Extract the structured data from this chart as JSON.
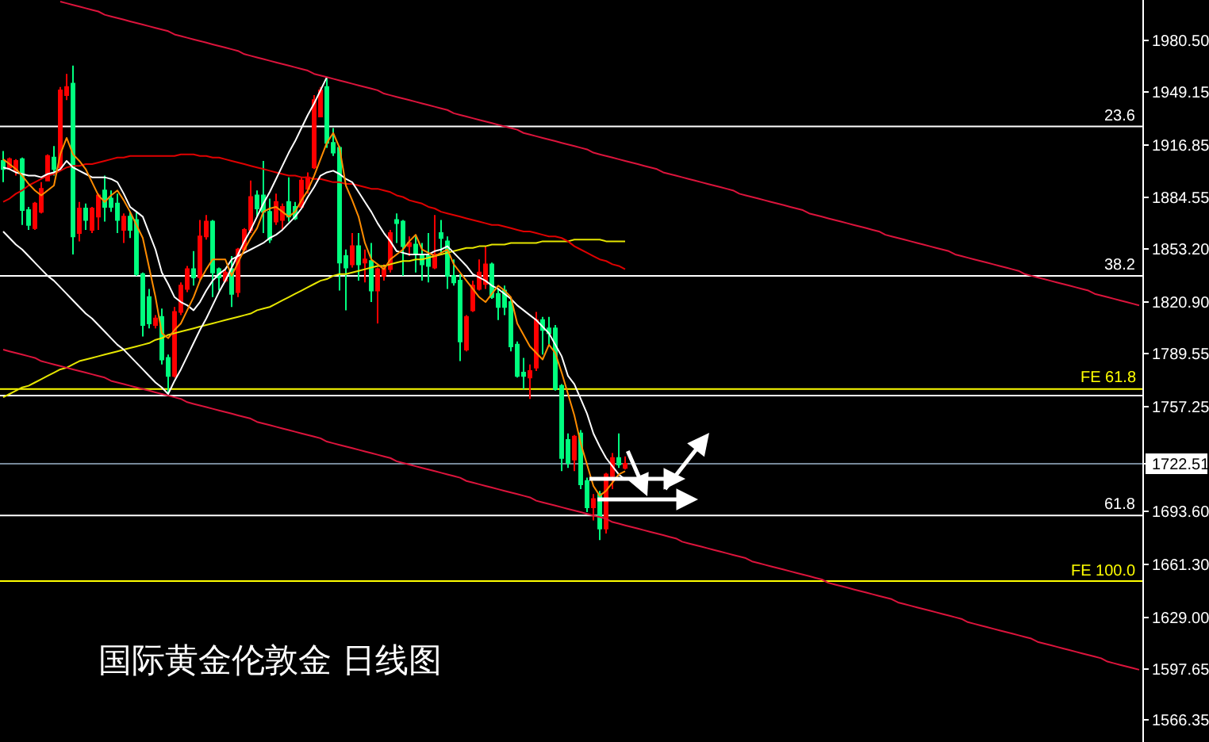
{
  "chart_data": {
    "type": "candlestick",
    "title": "国际黄金伦敦金 日线图",
    "categories": [
      null,
      null,
      null,
      null,
      null,
      null,
      null,
      null,
      null,
      null,
      null,
      null,
      null,
      null,
      null,
      null,
      null,
      null,
      null,
      null,
      null,
      null,
      null,
      null,
      null,
      null,
      null,
      null,
      null,
      null,
      null,
      null,
      null,
      null,
      null,
      null,
      null,
      null,
      null,
      null,
      null,
      null,
      null,
      null,
      null,
      null,
      null,
      null,
      null,
      null,
      null,
      null,
      null,
      null,
      null,
      null,
      null,
      null,
      null,
      null,
      null,
      null,
      null,
      null,
      null,
      null,
      null,
      null,
      null,
      null,
      null,
      null,
      null,
      null,
      null,
      null,
      null,
      null,
      null,
      null,
      null,
      null,
      null,
      null,
      null,
      null,
      null,
      null,
      null,
      null,
      null,
      null,
      null,
      null,
      null,
      null,
      null,
      null,
      null,
      null,
      null,
      null,
      null,
      null,
      null,
      null,
      null,
      null,
      null,
      null,
      null,
      null,
      null,
      null,
      null,
      null,
      null,
      null,
      null,
      null,
      null,
      null,
      null,
      null,
      null,
      null,
      null,
      null,
      null,
      null,
      null,
      null,
      null,
      null,
      null,
      null,
      null,
      null,
      null,
      null,
      null,
      null,
      null,
      null,
      null,
      null,
      null,
      null,
      null,
      null,
      null,
      null,
      null,
      null,
      null,
      null,
      null,
      null,
      null,
      null,
      null,
      null,
      null,
      null,
      null,
      null,
      null,
      null,
      null,
      null,
      null,
      null,
      null,
      null,
      null,
      null,
      null,
      null,
      null,
      null
    ],
    "ohlc": [
      [
        1907,
        1913,
        1894,
        1902
      ],
      [
        1903,
        1909,
        1902,
        1908
      ],
      [
        1901,
        1908,
        1898,
        1907
      ],
      [
        1908,
        1909,
        1868,
        1877
      ],
      [
        1877,
        1879,
        1865,
        1868
      ],
      [
        1866,
        1882,
        1865,
        1881
      ],
      [
        1876,
        1894,
        1875,
        1890
      ],
      [
        1895,
        1911,
        1895,
        1910
      ],
      [
        1909,
        1916,
        1898,
        1902
      ],
      [
        1903,
        1952,
        1902,
        1950
      ],
      [
        1947,
        1960,
        1944,
        1952
      ],
      [
        1954,
        1965,
        1850,
        1861
      ],
      [
        1863,
        1882,
        1858,
        1878
      ],
      [
        1878,
        1881,
        1865,
        1871
      ],
      [
        1865,
        1879,
        1863,
        1878
      ],
      [
        1873,
        1887,
        1865,
        1886
      ],
      [
        1889,
        1898,
        1870,
        1879
      ],
      [
        1884,
        1889,
        1876,
        1879
      ],
      [
        1881,
        1887,
        1863,
        1871
      ],
      [
        1865,
        1875,
        1857,
        1873
      ],
      [
        1873,
        1876,
        1860,
        1865
      ],
      [
        1871,
        1876,
        1837,
        1838
      ],
      [
        1838,
        1839,
        1800,
        1807
      ],
      [
        1824,
        1829,
        1805,
        1808
      ],
      [
        1807,
        1813,
        1805,
        1811
      ],
      [
        1812,
        1817,
        1783,
        1786
      ],
      [
        1787,
        1789,
        1765,
        1776
      ],
      [
        1776,
        1818,
        1775,
        1815
      ],
      [
        1815,
        1833,
        1813,
        1831
      ],
      [
        1829,
        1843,
        1827,
        1841
      ],
      [
        1841,
        1852,
        1831,
        1836
      ],
      [
        1836,
        1871,
        1834,
        1861
      ],
      [
        1861,
        1874,
        1859,
        1870
      ],
      [
        1870,
        1871,
        1824,
        1839
      ],
      [
        1841,
        1842,
        1828,
        1836
      ],
      [
        1834,
        1841,
        1833,
        1839
      ],
      [
        1841,
        1849,
        1818,
        1826
      ],
      [
        1827,
        1854,
        1824,
        1853
      ],
      [
        1853,
        1866,
        1852,
        1865
      ],
      [
        1865,
        1895,
        1863,
        1885
      ],
      [
        1886,
        1889,
        1873,
        1878
      ],
      [
        1886,
        1907,
        1863,
        1876
      ],
      [
        1876,
        1884,
        1857,
        1859
      ],
      [
        1870,
        1887,
        1868,
        1882
      ],
      [
        1871,
        1881,
        1865,
        1879
      ],
      [
        1882,
        1897,
        1870,
        1873
      ],
      [
        1879,
        1882,
        1871,
        1872
      ],
      [
        1879,
        1897,
        1878,
        1895
      ],
      [
        1890,
        1900,
        1887,
        1897
      ],
      [
        1903,
        1947,
        1902,
        1944
      ],
      [
        1934,
        1952,
        1934,
        1950
      ],
      [
        1952,
        1958,
        1915,
        1918
      ],
      [
        1918,
        1927,
        1910,
        1912
      ],
      [
        1915,
        1916,
        1828,
        1845
      ],
      [
        1849,
        1853,
        1816,
        1842
      ],
      [
        1844,
        1863,
        1842,
        1855
      ],
      [
        1855,
        1863,
        1834,
        1844
      ],
      [
        1845,
        1853,
        1833,
        1847
      ],
      [
        1846,
        1857,
        1821,
        1828
      ],
      [
        1828,
        1842,
        1808,
        1841
      ],
      [
        1837,
        1844,
        1834,
        1841
      ],
      [
        1841,
        1865,
        1839,
        1863
      ],
      [
        1871,
        1875,
        1857,
        1869
      ],
      [
        1870,
        1871,
        1837,
        1855
      ],
      [
        1855,
        1861,
        1849,
        1857
      ],
      [
        1856,
        1861,
        1839,
        1850
      ],
      [
        1850,
        1857,
        1834,
        1844
      ],
      [
        1849,
        1863,
        1833,
        1843
      ],
      [
        1842,
        1874,
        1841,
        1850
      ],
      [
        1863,
        1871,
        1850,
        1860
      ],
      [
        1858,
        1861,
        1829,
        1837
      ],
      [
        1837,
        1847,
        1831,
        1833
      ],
      [
        1834,
        1838,
        1785,
        1797
      ],
      [
        1792,
        1813,
        1791,
        1812
      ],
      [
        1816,
        1834,
        1815,
        1831
      ],
      [
        1829,
        1847,
        1828,
        1839
      ],
      [
        1832,
        1855,
        1829,
        1844
      ],
      [
        1844,
        1845,
        1823,
        1824
      ],
      [
        1826,
        1829,
        1810,
        1818
      ],
      [
        1828,
        1831,
        1813,
        1818
      ],
      [
        1821,
        1823,
        1791,
        1794
      ],
      [
        1795,
        1797,
        1775,
        1776
      ],
      [
        1778,
        1787,
        1768,
        1776
      ],
      [
        1775,
        1783,
        1762,
        1779
      ],
      [
        1781,
        1815,
        1779,
        1810
      ],
      [
        1810,
        1812,
        1789,
        1804
      ],
      [
        1805,
        1812,
        1795,
        1802
      ],
      [
        1805,
        1807,
        1767,
        1768
      ],
      [
        1770,
        1771,
        1718,
        1726
      ],
      [
        1737,
        1741,
        1720,
        1723
      ],
      [
        1725,
        1740,
        1718,
        1739
      ],
      [
        1741,
        1743,
        1707,
        1710
      ],
      [
        1712,
        1714,
        1693,
        1696
      ],
      [
        1696,
        1704,
        1688,
        1701
      ],
      [
        1704,
        1706,
        1676,
        1683
      ],
      [
        1683,
        1717,
        1680,
        1716
      ],
      [
        1715,
        1729,
        1707,
        1726
      ],
      [
        1726,
        1741,
        1720,
        1722
      ],
      [
        1720,
        1727,
        1719,
        1722.51
      ],
      null,
      null,
      null,
      null,
      null,
      null,
      null,
      null,
      null,
      null,
      null,
      null,
      null,
      null,
      null,
      null,
      null,
      null,
      null,
      null,
      null,
      null,
      null,
      null,
      null,
      null,
      null,
      null,
      null,
      null,
      null,
      null,
      null,
      null,
      null,
      null,
      null,
      null,
      null,
      null,
      null,
      null,
      null,
      null,
      null,
      null,
      null,
      null,
      null,
      null,
      null,
      null,
      null,
      null,
      null,
      null,
      null,
      null,
      null,
      null,
      null,
      null,
      null,
      null,
      null,
      null,
      null,
      null,
      null,
      null,
      null,
      null,
      null,
      null,
      null,
      null,
      null,
      null,
      null,
      null,
      null
    ],
    "colors": [
      "#00ff7f",
      "#ff0000",
      "#ff0000",
      "#00ff7f",
      "#00ff7f",
      "#ff0000",
      "#ff0000",
      "#ff0000",
      "#00ff7f",
      "#ff0000",
      "#ff0000",
      "#00ff7f",
      "#ff0000",
      "#00ff7f",
      "#ff0000",
      "#ff0000",
      "#00ff7f",
      "#00ff7f",
      "#00ff7f",
      "#ff0000",
      "#00ff7f",
      "#00ff7f",
      "#00ff7f",
      "#00ff7f",
      "#ff0000",
      "#00ff7f",
      "#00ff7f",
      "#ff0000",
      "#ff0000",
      "#ff0000",
      "#00ff7f",
      "#ff0000",
      "#ff0000",
      "#00ff7f",
      "#00ff7f",
      "#ff0000",
      "#00ff7f",
      "#ff0000",
      "#ff0000",
      "#ff0000",
      "#00ff7f",
      "#00ff7f",
      "#00ff7f",
      "#ff0000",
      "#ff0000",
      "#00ff7f",
      "#00ff7f",
      "#ff0000",
      "#ff0000",
      "#ff0000",
      "#ff0000",
      "#00ff7f",
      "#00ff7f",
      "#00ff7f",
      "#00ff7f",
      "#ff0000",
      "#00ff7f",
      "#ff0000",
      "#00ff7f",
      "#ff0000",
      "#ff0000",
      "#ff0000",
      "#00ff7f",
      "#00ff7f",
      "#ff0000",
      "#00ff7f",
      "#00ff7f",
      "#00ff7f",
      "#ff0000",
      "#00ff7f",
      "#00ff7f",
      "#00ff7f",
      "#00ff7f",
      "#ff0000",
      "#ff0000",
      "#ff0000",
      "#ff0000",
      "#00ff7f",
      "#00ff7f",
      "#00ff7f",
      "#00ff7f",
      "#00ff7f",
      "#00ff7f",
      "#ff0000",
      "#ff0000",
      "#00ff7f",
      "#00ff7f",
      "#00ff7f",
      "#00ff7f",
      "#00ff7f",
      "#ff0000",
      "#00ff7f",
      "#00ff7f",
      "#ff0000",
      "#00ff7f",
      "#ff0000",
      "#ff0000",
      "#00ff7f",
      "#ff0000",
      null,
      null,
      null,
      null,
      null,
      null,
      null,
      null,
      null,
      null,
      null,
      null,
      null,
      null,
      null,
      null,
      null,
      null,
      null,
      null,
      null,
      null,
      null,
      null,
      null,
      null,
      null,
      null,
      null,
      null,
      null,
      null,
      null,
      null,
      null,
      null,
      null,
      null,
      null,
      null,
      null,
      null,
      null,
      null,
      null,
      null,
      null,
      null,
      null,
      null,
      null,
      null,
      null,
      null,
      null,
      null,
      null,
      null,
      null,
      null,
      null,
      null,
      null,
      null,
      null,
      null,
      null,
      null,
      null,
      null,
      null,
      null,
      null,
      null,
      null,
      null,
      null,
      null,
      null,
      null,
      null
    ],
    "series": [
      {
        "type": "line",
        "color": "#e6e600",
        "values": [
          1763,
          1765,
          1767,
          1769,
          1770,
          1772,
          1774,
          1776,
          1778,
          1780,
          1781,
          1783,
          1785,
          1786,
          1787,
          1788,
          1789,
          1790,
          1791,
          1792,
          1793,
          1794,
          1795,
          1796,
          1798,
          1799,
          1801,
          1802,
          1803,
          1804,
          1805,
          1806,
          1807,
          1808,
          1809,
          1810,
          1811,
          1812,
          1813,
          1814,
          1816,
          1817,
          1818,
          1820,
          1822,
          1824,
          1826,
          1828,
          1830,
          1832,
          1834,
          1835,
          1837,
          1838,
          1838,
          1839,
          1840,
          1841,
          1842,
          1843,
          1843,
          1844,
          1845,
          1846,
          1846,
          1847,
          1847,
          1848,
          1849,
          1850,
          1851,
          1852,
          1853,
          1854,
          1854,
          1855,
          1855,
          1856,
          1856,
          1856,
          1857,
          1857,
          1857,
          1857,
          1857,
          1858,
          1858,
          1858,
          1858,
          1858,
          1859,
          1859,
          1859,
          1859,
          1859,
          1858,
          1858,
          1858,
          1858,
          null,
          null,
          null,
          null,
          null,
          null,
          null,
          null,
          null,
          null,
          null,
          null,
          null,
          null,
          null,
          null,
          null,
          null,
          null,
          null,
          null,
          null,
          null,
          null,
          null,
          null,
          null,
          null,
          null,
          null,
          null,
          null,
          null,
          null,
          null,
          null,
          null,
          null,
          null,
          null,
          null,
          null,
          null,
          null,
          null,
          null,
          null,
          null,
          null,
          null,
          null,
          null,
          null,
          null,
          null,
          null,
          null,
          null,
          null,
          null,
          null,
          null,
          null,
          null,
          null,
          null,
          null,
          null,
          null,
          null,
          null,
          null,
          null,
          null,
          null,
          null,
          null,
          null,
          null,
          null,
          null
        ]
      },
      {
        "type": "line",
        "color": "#e00000",
        "values": [
          1882,
          1884,
          1887,
          1889,
          1892,
          1894,
          1896,
          1898,
          1899,
          1901,
          1903,
          1904,
          1904,
          1905,
          1905,
          1906,
          1907,
          1908,
          1909,
          1909,
          1910,
          1910,
          1910,
          1910,
          1910,
          1910,
          1910,
          1910,
          1911,
          1911,
          1911,
          1910,
          1910,
          1909,
          1909,
          1908,
          1907,
          1906,
          1905,
          1904,
          1903,
          1902,
          1901,
          1900,
          1899,
          1898,
          1898,
          1897,
          1897,
          1896,
          1896,
          1895,
          1894,
          1894,
          1893,
          1893,
          1892,
          1891,
          1890,
          1890,
          1889,
          1888,
          1886,
          1885,
          1883,
          1882,
          1881,
          1879,
          1878,
          1876,
          1875,
          1874,
          1873,
          1872,
          1871,
          1870,
          1869,
          1868,
          1868,
          1867,
          1866,
          1865,
          1864,
          1864,
          1863,
          1862,
          1861,
          1861,
          1860,
          1858,
          1855,
          1853,
          1851,
          1849,
          1847,
          1846,
          1844,
          1843,
          1841,
          null,
          null,
          null,
          null,
          null,
          null,
          null,
          null,
          null,
          null,
          null,
          null,
          null,
          null,
          null,
          null,
          null,
          null,
          null,
          null,
          null,
          null,
          null,
          null,
          null,
          null,
          null,
          null,
          null,
          null,
          null,
          null,
          null,
          null,
          null,
          null,
          null,
          null,
          null,
          null,
          null,
          null,
          null,
          null,
          null,
          null,
          null,
          null,
          null,
          null,
          null,
          null,
          null,
          null,
          null,
          null,
          null,
          null,
          null,
          null,
          null,
          null,
          null,
          null,
          null,
          null,
          null,
          null,
          null,
          null,
          null,
          null,
          null,
          null,
          null,
          null,
          null,
          null,
          null,
          null,
          null
        ]
      },
      {
        "type": "line",
        "color": "#ffffff",
        "values": [
          1903,
          1902,
          1900,
          1899,
          1898,
          1898,
          1897,
          1899,
          1900,
          1902,
          1907,
          1903,
          1901,
          1899,
          1897,
          1897,
          1897,
          1896,
          1894,
          1887,
          1879,
          1876,
          1873,
          1863,
          1853,
          1839,
          1832,
          1824,
          1821,
          1819,
          1816,
          1821,
          1828,
          1834,
          1838,
          1841,
          1847,
          1849,
          1851,
          1853,
          1855,
          1857,
          1860,
          1862,
          1865,
          1869,
          1873,
          1878,
          1885,
          1891,
          1898,
          1900,
          1901,
          1899,
          1896,
          1894,
          1888,
          1882,
          1876,
          1869,
          1863,
          1858,
          1852,
          1851,
          1850,
          1850,
          1850,
          1850,
          1852,
          1853,
          1855,
          1851,
          1847,
          1843,
          1838,
          1836,
          1834,
          1831,
          1829,
          1826,
          1823,
          1819,
          1816,
          1813,
          1810,
          1806,
          1802,
          1795,
          1788,
          1776,
          1771,
          1762,
          1753,
          1741,
          1733,
          1726,
          1721,
          1716,
          1713,
          null,
          null,
          null,
          null,
          null,
          null,
          null,
          null,
          null,
          null,
          null,
          null,
          null,
          null,
          null,
          null,
          null,
          null,
          null,
          null,
          null,
          null,
          null,
          null,
          null,
          null,
          null,
          null,
          null,
          null,
          null,
          null,
          null,
          null,
          null,
          null,
          null,
          null,
          null,
          null,
          null,
          null,
          null,
          null,
          null,
          null,
          null,
          null,
          null,
          null,
          null,
          null,
          null,
          null,
          null,
          null,
          null,
          null,
          null,
          null,
          null,
          null,
          null,
          null,
          null,
          null,
          null,
          null,
          null,
          null,
          null,
          null,
          null,
          null,
          null,
          null,
          null,
          null,
          null,
          null,
          null
        ]
      },
      {
        "type": "line",
        "color": "#ff8c00",
        "values": [
          1908,
          1905,
          1902,
          1898,
          1893,
          1889,
          1886,
          1889,
          1892,
          1911,
          1921,
          1911,
          1907,
          1902,
          1894,
          1886,
          1882,
          1886,
          1889,
          1883,
          1876,
          1868,
          1860,
          1842,
          1824,
          1802,
          1799,
          1804,
          1808,
          1816,
          1824,
          1834,
          1841,
          1847,
          1847,
          1847,
          1837,
          1845,
          1853,
          1860,
          1866,
          1876,
          1878,
          1879,
          1876,
          1873,
          1876,
          1883,
          1889,
          1898,
          1908,
          1918,
          1924,
          1915,
          1892,
          1883,
          1873,
          1857,
          1847,
          1844,
          1841,
          1847,
          1850,
          1853,
          1858,
          1862,
          1853,
          1851,
          1849,
          1851,
          1853,
          1844,
          1839,
          1834,
          1829,
          1824,
          1821,
          1826,
          1831,
          1828,
          1824,
          1808,
          1801,
          1794,
          1790,
          1786,
          1795,
          1790,
          1778,
          1765,
          1752,
          1735,
          1722,
          1709,
          1703,
          1706,
          1711,
          1716,
          1718,
          null,
          null,
          null,
          null,
          null,
          null,
          null,
          null,
          null,
          null,
          null,
          null,
          null,
          null,
          null,
          null,
          null,
          null,
          null,
          null,
          null,
          null,
          null,
          null,
          null,
          null,
          null,
          null,
          null,
          null,
          null,
          null,
          null,
          null,
          null,
          null,
          null,
          null,
          null,
          null,
          null,
          null,
          null,
          null,
          null,
          null,
          null,
          null,
          null,
          null,
          null,
          null,
          null,
          null,
          null,
          null,
          null,
          null,
          null,
          null,
          null,
          null,
          null,
          null,
          null,
          null,
          null,
          null,
          null,
          null,
          null,
          null,
          null,
          null,
          null,
          null,
          null,
          null,
          null,
          null,
          null
        ]
      },
      {
        "type": "line",
        "color": "#ffffff",
        "values": [
          1864,
          1860,
          1856,
          1853,
          1849,
          1845,
          1841,
          1837,
          1834,
          1830,
          1826,
          1822,
          1818,
          1814,
          1811,
          1807,
          1803,
          1799,
          1795,
          1792,
          1788,
          1784,
          1780,
          1776,
          1772,
          1769,
          1765,
          1773,
          1780,
          1788,
          1796,
          1804,
          1811,
          1819,
          1827,
          1834,
          1842,
          1850,
          1858,
          1865,
          1873,
          1881,
          1888,
          1896,
          1904,
          1912,
          1919,
          1927,
          1935,
          1942,
          1950,
          1958,
          null,
          null,
          null,
          null,
          null,
          null,
          null,
          null,
          null,
          null,
          null,
          null,
          null,
          null,
          null,
          null,
          null,
          null,
          null,
          null,
          null,
          null,
          null,
          null,
          null,
          null,
          null,
          null,
          null,
          null,
          null,
          null,
          null,
          null,
          null,
          null,
          null,
          null,
          null,
          null,
          null,
          null,
          null,
          null,
          null,
          null,
          null,
          null,
          null,
          null,
          null,
          null,
          null,
          null,
          null,
          null,
          null,
          null,
          null,
          null,
          null,
          null,
          null,
          null,
          null,
          null,
          null,
          null,
          null,
          null,
          null,
          null,
          null,
          null,
          null,
          null,
          null,
          null,
          null,
          null,
          null,
          null,
          null,
          null,
          null,
          null,
          null,
          null,
          null,
          null,
          null,
          null,
          null,
          null,
          null,
          null,
          null,
          null,
          null,
          null,
          null,
          null,
          null,
          null,
          null,
          null,
          null,
          null,
          null,
          null,
          null,
          null,
          null,
          null,
          null,
          null,
          null,
          null,
          null,
          null,
          null,
          null,
          null,
          null,
          null,
          null,
          null,
          null
        ]
      },
      {
        "type": "line",
        "color": "#dc143c",
        "values": [
          null,
          null,
          null,
          null,
          null,
          null,
          null,
          null,
          null,
          2004,
          2003,
          2002,
          2001,
          2000,
          1999,
          1998,
          1996,
          1995,
          1994,
          1993,
          1992,
          1991,
          1990,
          1989,
          1988,
          1987,
          1986,
          1984,
          1983,
          1982,
          1981,
          1980,
          1979,
          1978,
          1977,
          1976,
          1975,
          1974,
          1972,
          1971,
          1970,
          1969,
          1968,
          1967,
          1966,
          1965,
          1964,
          1963,
          1962,
          1960,
          1959,
          1958,
          1957,
          1956,
          1955,
          1954,
          1953,
          1952,
          1951,
          1950,
          1948,
          1947,
          1946,
          1945,
          1944,
          1943,
          1942,
          1941,
          1940,
          1939,
          1938,
          1936,
          1935,
          1934,
          1933,
          1932,
          1931,
          1930,
          1929,
          1928,
          1927,
          1926,
          1924,
          1923,
          1922,
          1921,
          1920,
          1919,
          1918,
          1917,
          1916,
          1915,
          1914,
          1912,
          1911,
          1910,
          1909,
          1908,
          1907,
          1906,
          1905,
          1904,
          1903,
          1902,
          1900,
          1899,
          1898,
          1897,
          1896,
          1895,
          1894,
          1893,
          1892,
          1891,
          1890,
          1889,
          1887,
          1886,
          1885,
          1884,
          1883,
          1882,
          1881,
          1880,
          1879,
          1878,
          1877,
          1875,
          1874,
          1873,
          1872,
          1871,
          1870,
          1869,
          1868,
          1867,
          1866,
          1865,
          1864,
          1862,
          1861,
          1860,
          1859,
          1858,
          1857,
          1856,
          1855,
          1854,
          1853,
          1852,
          1850,
          1849,
          1848,
          1847,
          1846,
          1845,
          1844,
          1843,
          1842,
          1841,
          1840,
          1838,
          1837,
          1836,
          1835,
          1834,
          1833,
          1832,
          1831,
          1830,
          1829,
          1828,
          1826,
          1825,
          1824,
          1823,
          1822,
          1821,
          1820,
          1819
        ]
      },
      {
        "type": "line",
        "color": "#dc143c",
        "values": [
          1792,
          1791,
          1790,
          1789,
          1788,
          1787,
          1785,
          1784,
          1783,
          1782,
          1781,
          1780,
          1779,
          1778,
          1777,
          1776,
          1775,
          1773,
          1772,
          1771,
          1770,
          1769,
          1768,
          1767,
          1766,
          1765,
          1764,
          1763,
          1762,
          1760,
          1759,
          1758,
          1757,
          1756,
          1755,
          1754,
          1753,
          1752,
          1751,
          1750,
          1748,
          1747,
          1746,
          1745,
          1744,
          1743,
          1742,
          1741,
          1740,
          1739,
          1738,
          1736,
          1735,
          1734,
          1733,
          1732,
          1731,
          1730,
          1729,
          1728,
          1727,
          1726,
          1724,
          1723,
          1722,
          1721,
          1720,
          1719,
          1718,
          1717,
          1716,
          1715,
          1714,
          1712,
          1711,
          1710,
          1709,
          1708,
          1707,
          1706,
          1705,
          1704,
          1703,
          1702,
          1700,
          1699,
          1698,
          1697,
          1696,
          1695,
          1694,
          1693,
          1692,
          1691,
          1690,
          1689,
          1687,
          1686,
          1685,
          1684,
          1683,
          1682,
          1681,
          1680,
          1679,
          1678,
          1677,
          1675,
          1674,
          1673,
          1672,
          1671,
          1670,
          1669,
          1668,
          1667,
          1666,
          1665,
          1663,
          1662,
          1661,
          1660,
          1659,
          1658,
          1657,
          1656,
          1655,
          1654,
          1653,
          1652,
          1650,
          1649,
          1648,
          1647,
          1646,
          1645,
          1644,
          1643,
          1642,
          1641,
          1640,
          1638,
          1637,
          1636,
          1635,
          1634,
          1633,
          1632,
          1631,
          1630,
          1629,
          1628,
          1626,
          1625,
          1624,
          1623,
          1622,
          1621,
          1620,
          1619,
          1618,
          1617,
          1616,
          1614,
          1613,
          1612,
          1611,
          1610,
          1609,
          1608,
          1607,
          1606,
          1605,
          1604,
          1602,
          1601,
          1600,
          1599,
          1598,
          1597
        ]
      }
    ],
    "ref_lines": [
      {
        "axis": "y",
        "value": 1928,
        "color": "#ffffff"
      },
      {
        "axis": "y",
        "value": 1837,
        "color": "#ffffff"
      },
      {
        "axis": "y",
        "value": 1768,
        "label": "FE 61.8",
        "color": "#ffff00"
      },
      {
        "axis": "y",
        "value": 1764,
        "color": "#ffffff"
      },
      {
        "axis": "y",
        "value": 1722.51,
        "color": "#778899"
      },
      {
        "axis": "y",
        "value": 1691,
        "color": "#ffffff"
      },
      {
        "axis": "y",
        "value": 1651,
        "label": "FE 100.0",
        "color": "#ffff00"
      }
    ],
    "annotations": [
      {
        "text": "23.6",
        "y": 1928
      },
      {
        "text": "38.2",
        "y": 1837
      },
      {
        "text": "61.8",
        "y": 1691
      }
    ],
    "ylim": [
      1553,
      2005
    ],
    "yticks": [
      {
        "value": 1980.5,
        "label": "1980.50"
      },
      1949.15,
      1916.85,
      1884.55,
      {
        "value": 1853.2,
        "label": "1853.20"
      },
      {
        "value": 1820.9,
        "label": "1820.90"
      },
      1789.55,
      1757.25,
      1722.51,
      {
        "value": 1693.6,
        "label": "1693.60"
      },
      {
        "value": 1661.3,
        "label": "1661.30"
      },
      {
        "value": 1629.0,
        "label": "1629.00"
      },
      1597.65,
      1566.35
    ],
    "tick_labels": "y"
  }
}
